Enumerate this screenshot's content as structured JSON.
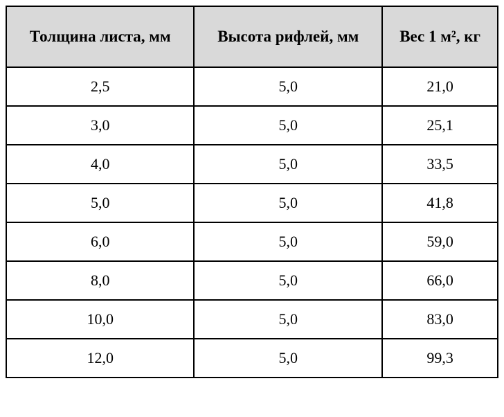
{
  "table": {
    "columns": [
      "Толщина листа, мм",
      "Высота рифлей, мм",
      "Вес 1 м², кг"
    ],
    "rows": [
      [
        "2,5",
        "5,0",
        "21,0"
      ],
      [
        "3,0",
        "5,0",
        "25,1"
      ],
      [
        "4,0",
        "5,0",
        "33,5"
      ],
      [
        "5,0",
        "5,0",
        "41,8"
      ],
      [
        "6,0",
        "5,0",
        "59,0"
      ],
      [
        "8,0",
        "5,0",
        "66,0"
      ],
      [
        "10,0",
        "5,0",
        "83,0"
      ],
      [
        "12,0",
        "5,0",
        "99,3"
      ]
    ],
    "header_bg_color": "#d9d9d9",
    "border_color": "#000000",
    "cell_bg_color": "#ffffff",
    "header_fontsize": 23,
    "cell_fontsize": 22,
    "font_family": "Times New Roman"
  }
}
